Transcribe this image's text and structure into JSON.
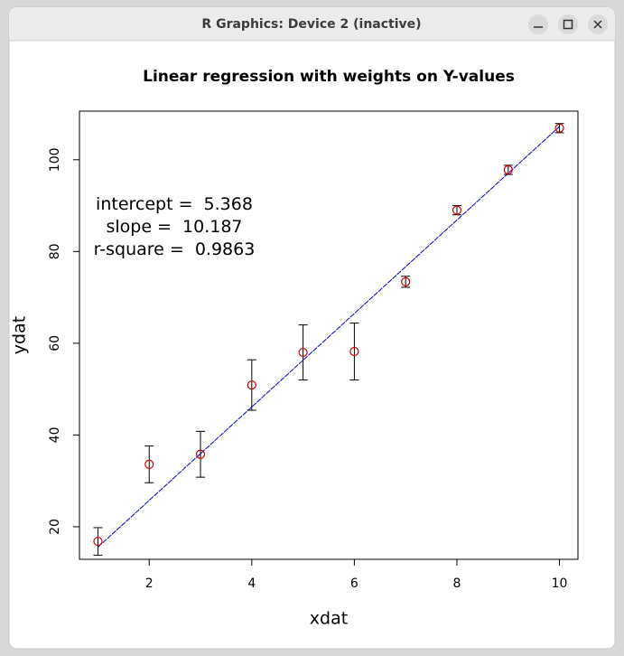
{
  "window": {
    "title": "R Graphics: Device 2 (inactive)"
  },
  "chart_data": {
    "type": "scatter",
    "title": "Linear regression with weights on Y-values",
    "x_label": "xdat",
    "y_label": "ydat",
    "x": [
      1,
      2,
      3,
      4,
      5,
      6,
      7,
      8,
      9,
      10
    ],
    "series": [
      {
        "name": "ydat",
        "color": "#cc0000",
        "values": [
          16.8,
          33.6,
          35.8,
          50.9,
          58.0,
          58.2,
          73.4,
          89.0,
          97.8,
          106.9
        ],
        "errors": [
          3,
          4,
          5,
          5.5,
          6,
          6.2,
          1.2,
          1,
          1,
          1
        ]
      }
    ],
    "error_color": "#000000",
    "fit": {
      "color": "#0000cc",
      "intercept_label": "intercept = ",
      "intercept": 5.368,
      "slope_label": "slope = ",
      "slope": 10.187,
      "r_square_label": "r-square = ",
      "r_square": 0.9863
    },
    "xlim": [
      0.64,
      10.36
    ],
    "ylim": [
      12.9,
      110.6
    ],
    "xticks": [
      2,
      4,
      6,
      8,
      10
    ],
    "yticks": [
      20,
      40,
      60,
      80,
      100
    ]
  }
}
